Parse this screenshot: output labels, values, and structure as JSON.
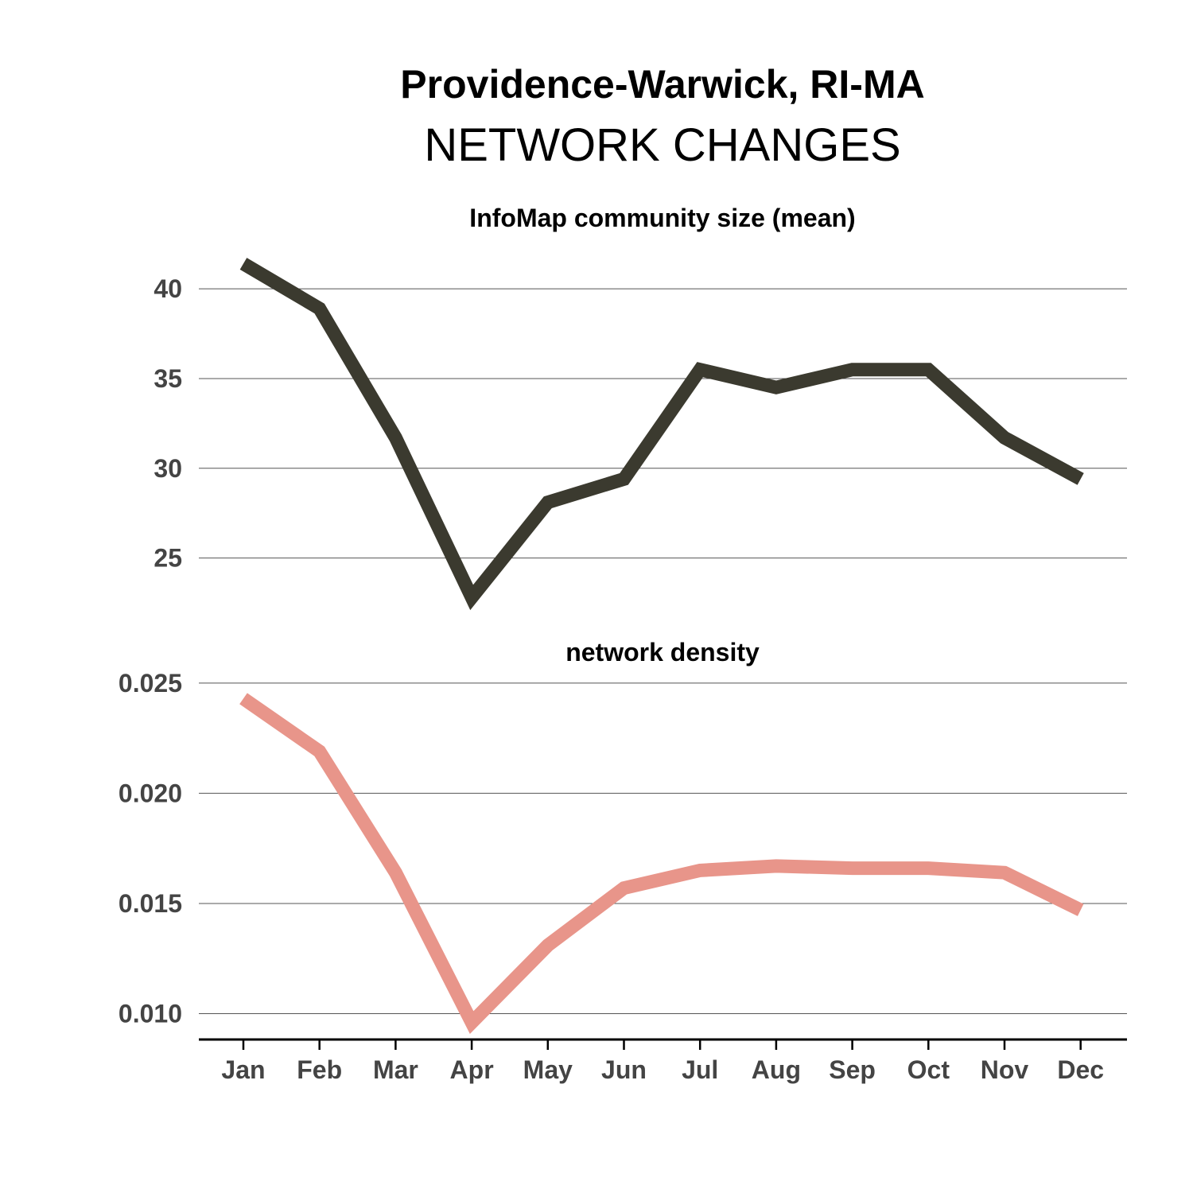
{
  "title": "Providence-Warwick, RI-MA",
  "subtitle": "NETWORK CHANGES",
  "colors": {
    "community_line": "#3b3a2f",
    "density_line": "#e8958a"
  },
  "chart_data": [
    {
      "type": "line",
      "title": "InfoMap community size (mean)",
      "categories": [
        "Jan",
        "Feb",
        "Mar",
        "Apr",
        "May",
        "Jun",
        "Jul",
        "Aug",
        "Sep",
        "Oct",
        "Nov",
        "Dec"
      ],
      "values": [
        41.4,
        38.9,
        31.7,
        22.8,
        28.1,
        29.4,
        35.5,
        34.5,
        35.5,
        35.5,
        31.7,
        29.4
      ],
      "yticks": [
        "25",
        "30",
        "35",
        "40"
      ],
      "ylim": [
        22.5,
        42
      ],
      "color": "#3b3a2f"
    },
    {
      "type": "line",
      "title": "network density",
      "categories": [
        "Jan",
        "Feb",
        "Mar",
        "Apr",
        "May",
        "Jun",
        "Jul",
        "Aug",
        "Sep",
        "Oct",
        "Nov",
        "Dec"
      ],
      "values": [
        0.0243,
        0.0219,
        0.0164,
        0.0096,
        0.0131,
        0.0157,
        0.0165,
        0.0167,
        0.0166,
        0.0166,
        0.0164,
        0.0147
      ],
      "yticks": [
        "0.010",
        "0.015",
        "0.020",
        "0.025"
      ],
      "ylim": [
        0.0089,
        0.0255
      ],
      "color": "#e8958a"
    }
  ]
}
